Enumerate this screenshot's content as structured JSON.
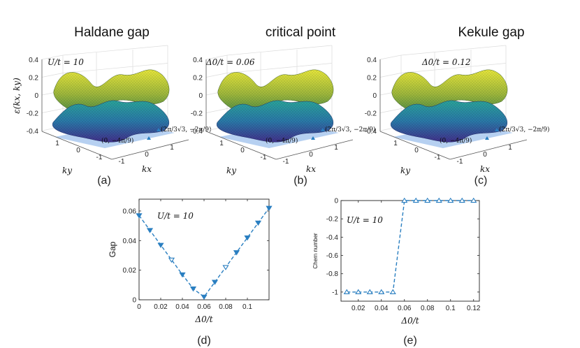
{
  "panels3d": [
    {
      "id": "a",
      "title": "Haldane gap",
      "annotation": "U/t = 10",
      "caption": "(a)",
      "colors": {
        "top_far": "#e3e33a",
        "top_near": "#5a8a3c",
        "bottom_far": "#2a8aa8",
        "bottom_near": "#3f2f88"
      }
    },
    {
      "id": "b",
      "title": "critical point",
      "annotation": "Δ0/t = 0.06",
      "caption": "(b)",
      "colors": {
        "top_far": "#e3e33a",
        "top_near": "#5a8a3c",
        "bottom_far": "#2a8aa8",
        "bottom_near": "#3f2f88"
      }
    },
    {
      "id": "c",
      "title": "Kekule gap",
      "annotation": "Δ0/t = 0.12",
      "caption": "(c)",
      "colors": {
        "top_far": "#e3e33a",
        "top_near": "#5a8a3c",
        "bottom_far": "#2a8aa8",
        "bottom_near": "#3f2f88"
      }
    }
  ],
  "surface_axes": {
    "z_label": "ε(kx, ky)",
    "z_ticks": [
      "0.4",
      "0.2",
      "0",
      "-0.2",
      "-0.4"
    ],
    "ky_label": "ky",
    "ky_ticks": [
      "1",
      "0",
      "-1"
    ],
    "kx_label": "kx",
    "kx_ticks": [
      "-1",
      "0",
      "1"
    ],
    "point_a": "(0, −4π/9)",
    "point_b": "(2π/3√3, −2π/9)",
    "plane_color": "#a9c8ee"
  },
  "chart_data": [
    {
      "type": "line",
      "id": "d",
      "caption": "(d)",
      "title": "",
      "annotation": "U/t = 10",
      "xlabel": "Δ0/t",
      "ylabel": "Gap",
      "xlim": [
        0,
        0.12
      ],
      "ylim": [
        0,
        0.068
      ],
      "xticks": [
        0,
        0.02,
        0.04,
        0.06,
        0.08,
        0.1
      ],
      "xtick_labels": [
        "0",
        "0.02",
        "0.04",
        "0.06",
        "0.08",
        "0.1"
      ],
      "yticks": [
        0,
        0.02,
        0.04,
        0.06
      ],
      "ytick_labels": [
        "0",
        "0.02",
        "0.04",
        "0.06"
      ],
      "color": "#2a7fc1",
      "x": [
        0,
        0.01,
        0.02,
        0.03,
        0.04,
        0.05,
        0.06,
        0.07,
        0.08,
        0.09,
        0.1,
        0.11,
        0.12
      ],
      "y": [
        0.057,
        0.047,
        0.037,
        0.027,
        0.017,
        0.0075,
        0.002,
        0.012,
        0.022,
        0.032,
        0.042,
        0.052,
        0.062
      ],
      "marker_fill": [
        "filled",
        "filled",
        "filled",
        "open",
        "filled",
        "filled",
        "filled",
        "filled",
        "open",
        "filled",
        "filled",
        "filled",
        "filled"
      ],
      "marker_dir": "down"
    },
    {
      "type": "line",
      "id": "e",
      "caption": "(e)",
      "title": "",
      "annotation": "U/t = 10",
      "xlabel": "Δ0/t",
      "ylabel": "Chern number",
      "xlim": [
        0.005,
        0.125
      ],
      "ylim": [
        -1.1,
        0
      ],
      "xticks": [
        0.02,
        0.04,
        0.06,
        0.08,
        0.1,
        0.12
      ],
      "xtick_labels": [
        "0.02",
        "0.04",
        "0.06",
        "0.08",
        "0.1",
        "0.12"
      ],
      "yticks": [
        0,
        -0.2,
        -0.4,
        -0.6,
        -0.8,
        -1
      ],
      "ytick_labels": [
        "0",
        "-0.2",
        "-0.4",
        "-0.6",
        "-0.8",
        "-1"
      ],
      "color": "#2a7fc1",
      "x": [
        0.01,
        0.02,
        0.03,
        0.04,
        0.05,
        0.06,
        0.07,
        0.08,
        0.09,
        0.1,
        0.11,
        0.12
      ],
      "y": [
        -1,
        -1,
        -1,
        -1,
        -1,
        0,
        0,
        0,
        0,
        0,
        0,
        0
      ],
      "marker_fill": [
        "open",
        "open",
        "open",
        "open",
        "open",
        "open",
        "open",
        "open",
        "open",
        "open",
        "open",
        "open"
      ],
      "marker_dir": "up"
    }
  ]
}
